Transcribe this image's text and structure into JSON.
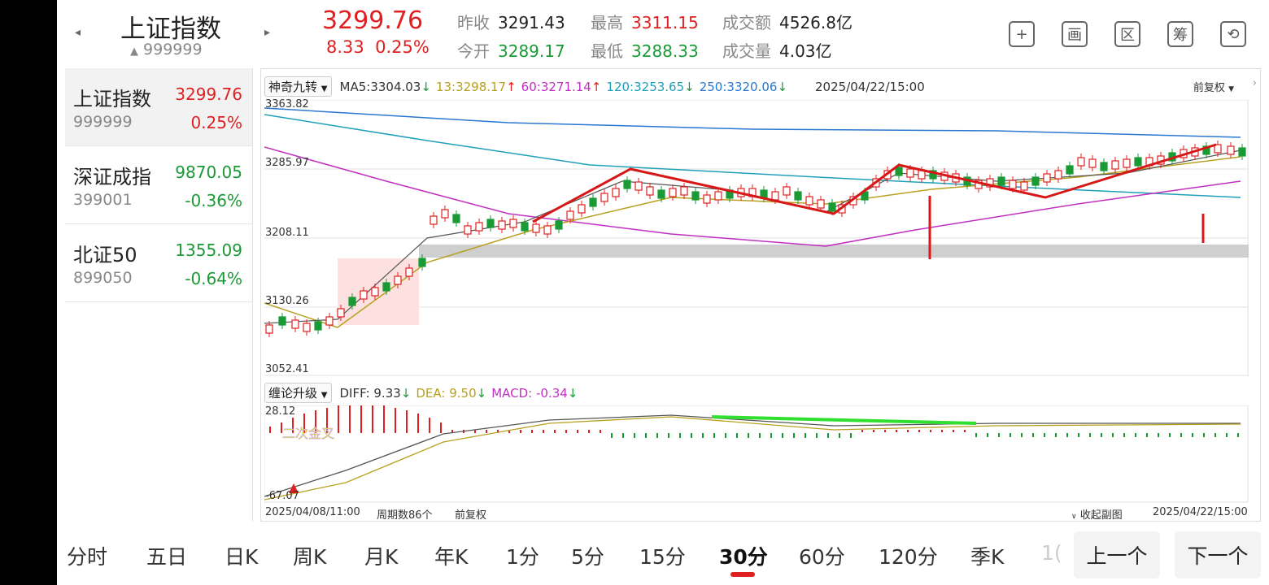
{
  "header": {
    "title": "上证指数",
    "code": "999999",
    "code_arrow": "▲",
    "price": "3299.76",
    "change": "8.33",
    "change_pct": "0.25%",
    "stats": [
      {
        "label": "昨收",
        "value": "3291.43",
        "color": "#222222"
      },
      {
        "label": "今开",
        "value": "3289.17",
        "color": "#1a9a35"
      },
      {
        "label": "最高",
        "value": "3311.15",
        "color": "#e02020"
      },
      {
        "label": "最低",
        "value": "3288.33",
        "color": "#1a9a35"
      },
      {
        "label": "成交额",
        "value": "4526.8亿",
        "color": "#222222"
      },
      {
        "label": "成交量",
        "value": "4.03亿",
        "color": "#222222"
      }
    ],
    "tools": [
      {
        "name": "add-icon",
        "glyph": "+"
      },
      {
        "name": "draw-icon",
        "glyph": "画"
      },
      {
        "name": "range-icon",
        "glyph": "区"
      },
      {
        "name": "chip-icon",
        "glyph": "筹"
      },
      {
        "name": "rotate-screen-icon",
        "glyph": "⟲"
      }
    ]
  },
  "index_list": [
    {
      "name": "上证指数",
      "code": "999999",
      "price": "3299.76",
      "pct": "0.25%",
      "color": "#e02020"
    },
    {
      "name": "深证成指",
      "code": "399001",
      "price": "9870.05",
      "pct": "-0.36%",
      "color": "#1a9a35"
    },
    {
      "name": "北证50",
      "code": "899050",
      "price": "1355.09",
      "pct": "-0.64%",
      "color": "#1a9a35"
    }
  ],
  "main_chart": {
    "indicator": "神奇九转",
    "ma": [
      {
        "label": "MA5:",
        "value": "3304.03",
        "arrow": "↓",
        "color": "#333333",
        "arrow_color": "#1a9a35"
      },
      {
        "label": "13:",
        "value": "3298.17",
        "arrow": "↑",
        "color": "#b8a020",
        "arrow_color": "#e02020"
      },
      {
        "label": "60:",
        "value": "3271.14",
        "arrow": "↑",
        "color": "#c030c0",
        "arrow_color": "#e02020"
      },
      {
        "label": "120:",
        "value": "3253.65",
        "arrow": "↓",
        "color": "#20a0b8",
        "arrow_color": "#1a9a35"
      },
      {
        "label": "250:",
        "value": "3320.06",
        "arrow": "↓",
        "color": "#2878d0",
        "arrow_color": "#1a9a35"
      }
    ],
    "datetime": "2025/04/22/15:00",
    "adjust": "前复权",
    "y_labels": [
      "3363.82",
      "3285.97",
      "3208.11",
      "3130.26",
      "3052.41"
    ]
  },
  "sub_chart": {
    "indicator": "缠论升级",
    "diff": "DIFF: 9.33",
    "diff_arrow": "↓",
    "dea": "DEA: 9.50",
    "dea_arrow": "↓",
    "macd": "MACD: -0.34",
    "macd_arrow": "↓",
    "y_top": "28.12",
    "y_bottom": "-67.07",
    "annotation": "二次金叉"
  },
  "footer": {
    "start": "2025/04/08/11:00",
    "periods": "周期数86个",
    "adjust": "前复权",
    "collapse": "收起副图",
    "end": "2025/04/22/15:00"
  },
  "tabs": [
    "分时",
    "五日",
    "日K",
    "周K",
    "月K",
    "年K",
    "1分",
    "5分",
    "15分",
    "30分",
    "60分",
    "120分",
    "季K",
    "1("
  ],
  "active_tab": "30分",
  "buttons": {
    "prev": "上一个",
    "next": "下一个"
  },
  "colors": {
    "up": "#e02020",
    "down": "#1a9a35"
  }
}
